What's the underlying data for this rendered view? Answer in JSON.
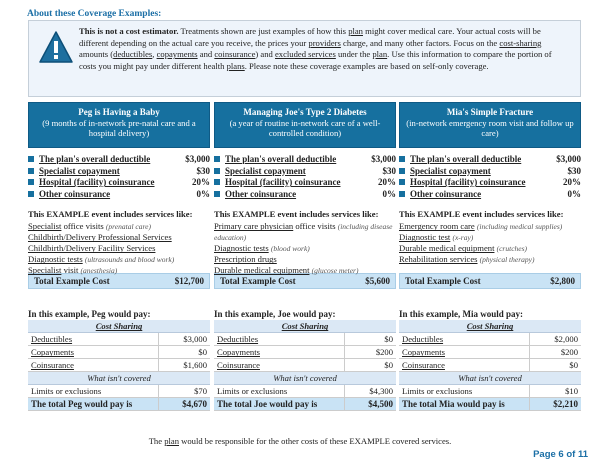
{
  "title": "About these Coverage Examples:",
  "notice": {
    "bold": "This is not a cost estimator.",
    "t1": " Treatments shown are just examples of how this ",
    "plan": "plan",
    "t2": " might cover medical care. Your actual costs will be different depending on the actual care you receive, the prices your ",
    "providers": "providers",
    "t3": " charge, and many other factors. Focus on the ",
    "cost_sharing": "cost-sharing",
    "t4": " amounts (",
    "deductibles": "deductibles",
    "t5": ", ",
    "copayments": "copayments",
    "t6": " and ",
    "coinsurance": "coinsurance",
    "t7": ") and ",
    "excluded": "excluded services",
    "t8": " under the ",
    "plan2": "plan",
    "t9": ". Use this information to compare the portion of costs you might pay under different health ",
    "plans": "plans",
    "t10": ". Please note these coverage examples are based on self-only coverage."
  },
  "labels": {
    "deductible": "The plan's overall deductible",
    "specialist": "Specialist copayment",
    "hospital": "Hospital (facility) coinsurance",
    "other": "Other coinsurance",
    "event": "This EXAMPLE event includes services like:",
    "total_cost": "Total Example Cost",
    "cost_sharing": "Cost Sharing",
    "deductibles": "Deductibles",
    "copayments": "Copayments",
    "coinsurance": "Coinsurance",
    "not_covered": "What isn't covered",
    "limits": "Limits or exclusions"
  },
  "examples": [
    {
      "title": "Peg is Having a Baby",
      "subtitle": "(9 months of in-network pre-natal care and a hospital delivery)",
      "deductible": "$3,000",
      "specialist": "$30",
      "hospital": "20%",
      "other": "0%",
      "services": [
        {
          "name": "Specialist",
          "rest": " office visits ",
          "note": "(prenatal care)"
        },
        {
          "name": "Childbirth/Delivery Professional Services",
          "rest": "",
          "note": ""
        },
        {
          "name": "Childbirth/Delivery Facility Services",
          "rest": "",
          "note": ""
        },
        {
          "name": "Diagnostic tests",
          "rest": " ",
          "note": "(ultrasounds and blood work)"
        },
        {
          "name": "Specialist",
          "rest": " visit ",
          "note": "(anesthesia)"
        }
      ],
      "total_cost": "$12,700",
      "pay_label": "In this example, Peg would pay:",
      "deductibles": "$3,000",
      "copayments": "$0",
      "coinsurance": "$1,600",
      "limits": "$70",
      "total_label": "The total Peg would pay is",
      "total": "$4,670"
    },
    {
      "title": "Managing Joe's Type 2 Diabetes",
      "subtitle": "(a year of routine in-network care of a well-controlled condition)",
      "deductible": "$3,000",
      "specialist": "$30",
      "hospital": "20%",
      "other": "0%",
      "services": [
        {
          "name": "Primary care physician",
          "rest": " office visits ",
          "note": "(including disease education)"
        },
        {
          "name": "Diagnostic tests",
          "rest": " ",
          "note": "(blood work)"
        },
        {
          "name": "Prescription drugs",
          "rest": "",
          "note": ""
        },
        {
          "name": "Durable medical equipment",
          "rest": " ",
          "note": "(glucose meter)"
        }
      ],
      "total_cost": "$5,600",
      "pay_label": "In this example, Joe would pay:",
      "deductibles": "$0",
      "copayments": "$200",
      "coinsurance": "$0",
      "limits": "$4,300",
      "total_label": "The total Joe would pay is",
      "total": "$4,500"
    },
    {
      "title": "Mia's Simple Fracture",
      "subtitle": "(in-network emergency room visit and follow up care)",
      "deductible": "$3,000",
      "specialist": "$30",
      "hospital": "20%",
      "other": "0%",
      "services": [
        {
          "name": "Emergency room care",
          "rest": " ",
          "note": "(including medical supplies)"
        },
        {
          "name": "Diagnostic test",
          "rest": " ",
          "note": "(x-ray)"
        },
        {
          "name": "Durable medical equipment",
          "rest": " ",
          "note": "(crutches)"
        },
        {
          "name": "Rehabilitation services",
          "rest": " ",
          "note": "(physical therapy)"
        }
      ],
      "total_cost": "$2,800",
      "pay_label": "In this example, Mia would pay:",
      "deductibles": "$2,000",
      "copayments": "$200",
      "coinsurance": "$0",
      "limits": "$10",
      "total_label": "The total Mia would pay is",
      "total": "$2,210"
    }
  ],
  "footer": {
    "t1": "The ",
    "plan": "plan",
    "t2": " would be responsible for the other costs of these EXAMPLE covered services."
  },
  "page": "Page 6 of 11"
}
